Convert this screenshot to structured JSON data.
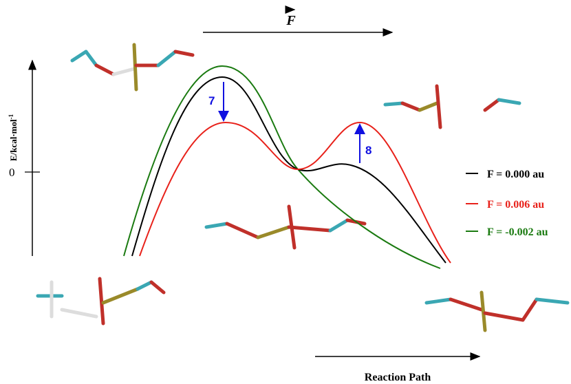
{
  "field_label": "F",
  "y_axis_label": {
    "text": "E/kcal·mol",
    "superscript": "-1"
  },
  "zero_label": "0",
  "x_axis_label": "Reaction Path",
  "annotations": [
    "7",
    "8"
  ],
  "legend": [
    {
      "label": "F = 0.000 au",
      "color": "#000000"
    },
    {
      "label": "F = 0.006 au",
      "color": "#e8211a"
    },
    {
      "label": "F = -0.002 au",
      "color": "#1a7a10"
    }
  ]
}
